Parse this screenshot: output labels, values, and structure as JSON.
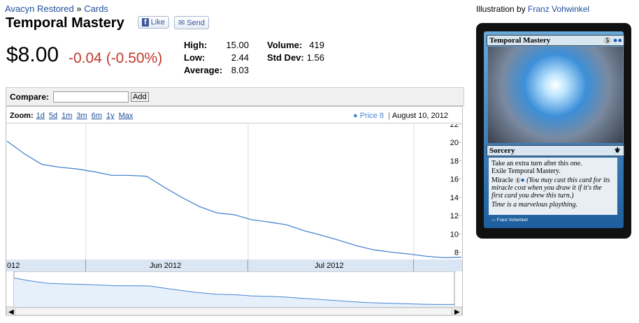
{
  "header": {
    "breadcrumb": [
      "Avacyn Restored",
      "»",
      "Cards"
    ],
    "title": "Temporal Mastery",
    "like": "Like",
    "send": "Send"
  },
  "price": {
    "current": "$8.00",
    "change": "-0.04 (-0.50%)"
  },
  "stats": [
    {
      "label": "High:",
      "value": "15.00"
    },
    {
      "label": "Volume:",
      "value": "419"
    },
    {
      "label": "Low:",
      "value": "2.44"
    },
    {
      "label": "Std Dev:",
      "value": "1.56"
    },
    {
      "label": "Average:",
      "value": "8.03"
    }
  ],
  "compare": {
    "label": "Compare:",
    "button": "Add"
  },
  "zoom": {
    "label": "Zoom:",
    "links": [
      "1d",
      "5d",
      "1m",
      "3m",
      "6m",
      "1y",
      "Max"
    ],
    "legend": "Price 8",
    "date": "August 10, 2012"
  },
  "price_chart": {
    "type": "line",
    "color": "#4a86d0",
    "values": [
      20.15,
      18.75,
      17.6,
      17.3,
      17.1,
      16.8,
      16.4,
      16.4,
      16.3,
      15.1,
      14.0,
      13.0,
      12.3,
      12.1,
      11.55,
      11.3,
      11.0,
      10.35,
      9.85,
      9.3,
      8.7,
      8.25,
      8.0,
      7.8,
      7.55,
      7.4,
      7.45
    ],
    "ylim": [
      7.2,
      22
    ],
    "yticks": [
      8,
      10,
      12,
      14,
      16,
      18,
      20,
      22
    ],
    "x_labels": [
      "012",
      "Jun 2012",
      "Jul 2012"
    ]
  },
  "card": {
    "illustration_label": "Illustration by",
    "artist": "Franz Vohwinkel",
    "name": "Temporal Mastery",
    "cost": "5",
    "type_line": "Sorcery",
    "rules": [
      "Take an extra turn after this one.",
      "Exile Temporal Mastery."
    ],
    "miracle": "Miracle",
    "miracle_cost": "1",
    "reminder": "(You may cast this card for its miracle cost when you draw it if it's the first card you drew this turn.)",
    "flavor": "Time is a marvelous plaything.",
    "credit": "Franz Vohwinkel"
  }
}
